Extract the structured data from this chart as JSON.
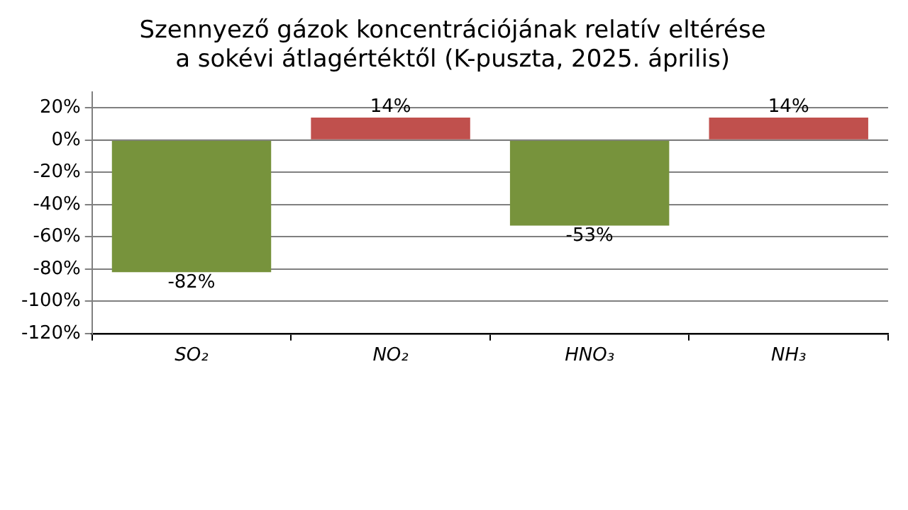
{
  "chart_data": {
    "type": "bar",
    "title": "Szennyező gázok koncentrációjának relatív eltérése\na sokévi átlagértéktől (K-puszta, 2025. április)",
    "categories": [
      "SO₂",
      "NO₂",
      "HNO₃",
      "NH₃"
    ],
    "values": [
      -82,
      14,
      -53,
      14
    ],
    "colors": [
      "#77933c",
      "#c0504d",
      "#77933c",
      "#c0504d"
    ],
    "value_labels": [
      "-82%",
      "14%",
      "-53%",
      "14%"
    ],
    "ylim": [
      -120,
      30
    ],
    "yticks": [
      {
        "value": -120,
        "label": "-120%"
      },
      {
        "value": -100,
        "label": "-100%"
      },
      {
        "value": -80,
        "label": "-80%"
      },
      {
        "value": -60,
        "label": "-60%"
      },
      {
        "value": -40,
        "label": "-40%"
      },
      {
        "value": -20,
        "label": "-20%"
      },
      {
        "value": 0,
        "label": "0%"
      },
      {
        "value": 20,
        "label": "20%"
      }
    ],
    "ref_lines": [
      {
        "axis": "y",
        "value": 0,
        "color": "#808080"
      }
    ],
    "grid": "y",
    "legend": false
  }
}
